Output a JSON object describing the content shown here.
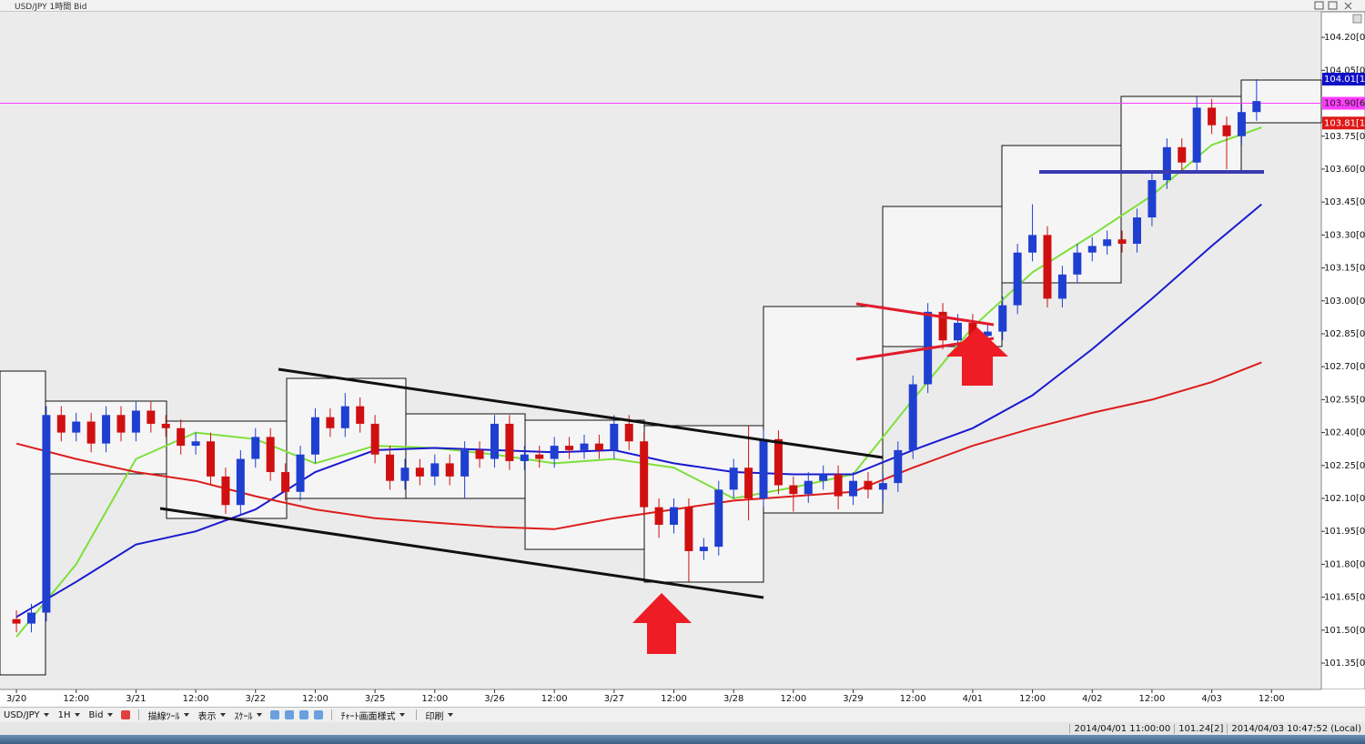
{
  "window": {
    "title": "USD/JPY 1時間 Bid"
  },
  "chart_data": {
    "type": "candlestick",
    "up_color": "#1f3fd0",
    "down_color": "#d01010",
    "x": [
      0,
      3,
      6,
      9,
      12,
      15,
      18,
      21,
      24,
      27,
      30,
      33,
      36,
      39,
      42,
      45,
      48,
      51,
      54,
      57,
      60,
      63,
      66,
      69,
      72,
      75,
      78,
      81,
      84,
      87,
      90,
      93,
      96,
      99,
      102,
      105,
      108,
      111,
      114,
      117,
      120,
      123,
      126,
      129,
      132,
      135,
      138,
      141,
      144,
      147,
      150,
      153,
      156,
      159,
      162,
      165,
      168,
      171,
      174,
      177,
      180,
      183,
      186,
      189,
      192,
      195,
      198,
      201,
      204,
      207,
      210,
      213,
      216,
      219,
      222,
      225,
      228,
      231,
      234,
      237,
      240,
      243,
      246,
      249
    ],
    "open": [
      101.55,
      101.53,
      101.58,
      102.48,
      102.4,
      102.45,
      102.35,
      102.48,
      102.4,
      102.5,
      102.44,
      102.42,
      102.34,
      102.36,
      102.2,
      102.07,
      102.28,
      102.38,
      102.22,
      102.13,
      102.3,
      102.47,
      102.42,
      102.52,
      102.44,
      102.3,
      102.18,
      102.24,
      102.2,
      102.26,
      102.2,
      102.32,
      102.28,
      102.44,
      102.27,
      102.3,
      102.28,
      102.34,
      102.32,
      102.35,
      102.32,
      102.44,
      102.36,
      102.06,
      101.98,
      102.06,
      101.86,
      101.88,
      102.14,
      102.24,
      102.1,
      102.37,
      102.16,
      102.12,
      102.18,
      102.21,
      102.11,
      102.18,
      102.14,
      102.17,
      102.32,
      102.62,
      102.95,
      102.82,
      102.9,
      102.84,
      102.86,
      102.98,
      103.22,
      103.3,
      103.01,
      103.12,
      103.22,
      103.25,
      103.28,
      103.26,
      103.38,
      103.55,
      103.7,
      103.63,
      103.88,
      103.8,
      103.75,
      103.86
    ],
    "high": [
      101.59,
      101.62,
      102.52,
      102.52,
      102.49,
      102.49,
      102.52,
      102.52,
      102.54,
      102.54,
      102.48,
      102.46,
      102.4,
      102.4,
      102.24,
      102.32,
      102.42,
      102.42,
      102.26,
      102.34,
      102.51,
      102.51,
      102.58,
      102.56,
      102.48,
      102.34,
      102.28,
      102.28,
      102.3,
      102.3,
      102.36,
      102.36,
      102.48,
      102.48,
      102.34,
      102.34,
      102.38,
      102.38,
      102.39,
      102.39,
      102.48,
      102.48,
      102.4,
      102.1,
      102.1,
      102.1,
      101.92,
      102.18,
      102.28,
      102.43,
      102.41,
      102.41,
      102.2,
      102.22,
      102.25,
      102.25,
      102.22,
      102.22,
      102.21,
      102.36,
      102.66,
      102.99,
      102.99,
      102.94,
      102.94,
      102.9,
      103.02,
      103.26,
      103.44,
      103.34,
      103.16,
      103.26,
      103.29,
      103.32,
      103.32,
      103.42,
      103.59,
      103.74,
      103.74,
      103.93,
      103.92,
      103.84,
      103.9,
      104.01
    ],
    "low": [
      101.49,
      101.49,
      101.54,
      102.36,
      102.36,
      102.31,
      102.31,
      102.36,
      102.36,
      102.4,
      102.38,
      102.3,
      102.3,
      102.16,
      102.03,
      102.03,
      102.24,
      102.18,
      102.09,
      102.09,
      102.26,
      102.38,
      102.38,
      102.4,
      102.26,
      102.14,
      102.14,
      102.16,
      102.16,
      102.16,
      102.1,
      102.24,
      102.24,
      102.23,
      102.23,
      102.24,
      102.24,
      102.28,
      102.28,
      102.28,
      102.28,
      102.32,
      102.02,
      101.92,
      101.94,
      101.72,
      101.82,
      101.84,
      102.1,
      102.0,
      102.06,
      102.12,
      102.04,
      102.08,
      102.14,
      102.05,
      102.07,
      102.1,
      102.08,
      102.13,
      102.28,
      102.58,
      102.78,
      102.78,
      102.8,
      102.8,
      102.82,
      102.94,
      103.18,
      102.97,
      102.97,
      103.08,
      103.18,
      103.21,
      103.22,
      103.22,
      103.34,
      103.51,
      103.59,
      103.59,
      103.76,
      103.6,
      103.71,
      103.82
    ],
    "close": [
      101.53,
      101.58,
      102.48,
      102.4,
      102.45,
      102.35,
      102.48,
      102.4,
      102.5,
      102.44,
      102.42,
      102.34,
      102.36,
      102.2,
      102.07,
      102.28,
      102.38,
      102.22,
      102.13,
      102.3,
      102.47,
      102.42,
      102.52,
      102.44,
      102.3,
      102.18,
      102.24,
      102.2,
      102.26,
      102.2,
      102.32,
      102.28,
      102.44,
      102.27,
      102.3,
      102.28,
      102.34,
      102.32,
      102.35,
      102.32,
      102.44,
      102.36,
      102.06,
      101.98,
      102.06,
      101.86,
      101.88,
      102.14,
      102.24,
      102.1,
      102.37,
      102.16,
      102.12,
      102.18,
      102.21,
      102.11,
      102.18,
      102.14,
      102.17,
      102.32,
      102.62,
      102.95,
      102.82,
      102.9,
      102.84,
      102.86,
      102.98,
      103.22,
      103.3,
      103.01,
      103.12,
      103.22,
      103.25,
      103.28,
      103.26,
      103.38,
      103.55,
      103.7,
      103.63,
      103.88,
      103.8,
      103.75,
      103.86,
      103.91
    ],
    "series": [
      {
        "color": "#7ee03a",
        "x": [
          0,
          12,
          24,
          36,
          48,
          60,
          72,
          84,
          96,
          108,
          120,
          132,
          144,
          156,
          168,
          180,
          192,
          204,
          216,
          228,
          240,
          250
        ],
        "values": [
          101.47,
          101.8,
          102.28,
          102.4,
          102.37,
          102.26,
          102.34,
          102.33,
          102.3,
          102.26,
          102.28,
          102.24,
          102.1,
          102.15,
          102.21,
          102.55,
          102.88,
          103.13,
          103.3,
          103.48,
          103.71,
          103.79
        ]
      },
      {
        "color": "#1a1ad0",
        "x": [
          0,
          12,
          24,
          36,
          48,
          60,
          72,
          84,
          96,
          108,
          120,
          132,
          144,
          156,
          168,
          180,
          192,
          204,
          216,
          228,
          240,
          250
        ],
        "values": [
          101.56,
          101.72,
          101.89,
          101.95,
          102.05,
          102.22,
          102.32,
          102.33,
          102.32,
          102.31,
          102.32,
          102.26,
          102.22,
          102.21,
          102.21,
          102.32,
          102.42,
          102.57,
          102.78,
          103.01,
          103.25,
          103.44
        ]
      },
      {
        "color": "#dd1c1c",
        "x": [
          0,
          12,
          24,
          36,
          48,
          60,
          72,
          84,
          96,
          108,
          120,
          132,
          144,
          156,
          168,
          180,
          192,
          204,
          216,
          228,
          240,
          250
        ],
        "values": [
          102.35,
          102.28,
          102.22,
          102.18,
          102.11,
          102.05,
          102.01,
          101.99,
          101.97,
          101.96,
          102.01,
          102.05,
          102.09,
          102.11,
          102.13,
          102.24,
          102.34,
          102.42,
          102.49,
          102.55,
          102.63,
          102.72
        ]
      }
    ],
    "xlim": [
      -3.3,
      262
    ],
    "xticks": [
      {
        "value": 0,
        "label": "3/20"
      },
      {
        "value": 12,
        "label": "12:00"
      },
      {
        "value": 24,
        "label": "3/21"
      },
      {
        "value": 36,
        "label": "12:00"
      },
      {
        "value": 48,
        "label": "3/22"
      },
      {
        "value": 60,
        "label": "12:00"
      },
      {
        "value": 72,
        "label": "3/25"
      },
      {
        "value": 84,
        "label": "12:00"
      },
      {
        "value": 96,
        "label": "3/26"
      },
      {
        "value": 108,
        "label": "12:00"
      },
      {
        "value": 120,
        "label": "3/27"
      },
      {
        "value": 132,
        "label": "12:00"
      },
      {
        "value": 144,
        "label": "3/28"
      },
      {
        "value": 156,
        "label": "12:00"
      },
      {
        "value": 168,
        "label": "3/29"
      },
      {
        "value": 180,
        "label": "12:00"
      },
      {
        "value": 192,
        "label": "4/01"
      },
      {
        "value": 204,
        "label": "12:00"
      },
      {
        "value": 216,
        "label": "4/02"
      },
      {
        "value": 228,
        "label": "12:00"
      },
      {
        "value": 240,
        "label": "4/03"
      },
      {
        "value": 252,
        "label": "12:00"
      }
    ],
    "ylim": [
      101.23,
      104.3
    ],
    "yticks": [
      {
        "value": 104.2,
        "label": "104.20[0]"
      },
      {
        "value": 104.05,
        "label": "104.05[0]"
      },
      {
        "value": 103.75,
        "label": "103.75[0]"
      },
      {
        "value": 103.6,
        "label": "103.60[0]"
      },
      {
        "value": 103.45,
        "label": "103.45[0]"
      },
      {
        "value": 103.3,
        "label": "103.30[0]"
      },
      {
        "value": 103.15,
        "label": "103.15[0]"
      },
      {
        "value": 103.0,
        "label": "103.00[0]"
      },
      {
        "value": 102.85,
        "label": "102.85[0]"
      },
      {
        "value": 102.7,
        "label": "102.70[0]"
      },
      {
        "value": 102.55,
        "label": "102.55[0]"
      },
      {
        "value": 102.4,
        "label": "102.40[0]"
      },
      {
        "value": 102.25,
        "label": "102.25[0]"
      },
      {
        "value": 102.1,
        "label": "102.10[0]"
      },
      {
        "value": 101.95,
        "label": "101.95[0]"
      },
      {
        "value": 101.8,
        "label": "101.80[0]"
      },
      {
        "value": 101.65,
        "label": "101.65[0]"
      },
      {
        "value": 101.5,
        "label": "101.50[0]"
      },
      {
        "value": 101.35,
        "label": "101.35[0]"
      }
    ],
    "price_markers": [
      {
        "value": 104.01,
        "label": "104.01[1",
        "color": "#1010c8",
        "text_color": "#ffffff"
      },
      {
        "value": 103.9,
        "label": "103.90[6",
        "color": "#ff3cff",
        "text_color": "#202020",
        "line": true
      },
      {
        "value": 103.81,
        "label": "103.81[1",
        "color": "#e01818",
        "text_color": "#ffffff"
      }
    ]
  },
  "toolbar": {
    "items": [
      "USD/JPY",
      "1H",
      "Bid",
      "描線ﾂｰﾙ",
      "表示",
      "ｽｹｰﾙ",
      "ﾁｬｰﾄ画面様式",
      "印刷"
    ]
  },
  "status_bar": [
    "2014/04/01 11:00:00",
    "101.24[2]",
    "2014/04/03 10:47:52 (Local)"
  ]
}
